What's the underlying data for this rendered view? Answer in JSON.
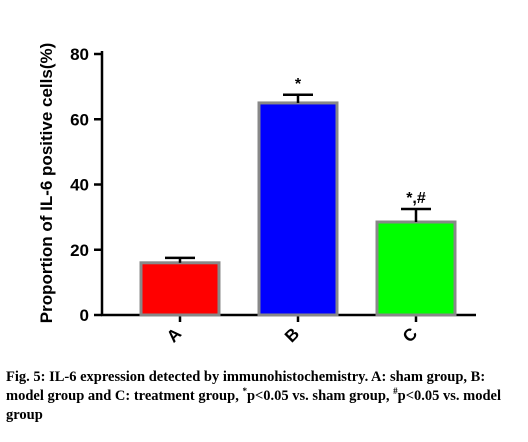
{
  "chart_data": {
    "type": "bar",
    "categories": [
      "A",
      "B",
      "C"
    ],
    "values": [
      16,
      65,
      28.5
    ],
    "errors": [
      1.5,
      2.5,
      4
    ],
    "significance": [
      "",
      "*",
      "*,#"
    ],
    "colors": [
      "#ff0000",
      "#0000ff",
      "#00ff00"
    ],
    "edge_color": "#888888",
    "ylabel": "Proportion of IL-6 positive cells(%)",
    "xlabel": "",
    "ylim": [
      0,
      80
    ],
    "yticks": [
      0,
      20,
      40,
      60,
      80
    ],
    "grid": false
  },
  "caption": {
    "fig_label": "Fig. 5:",
    "part1": " IL-6 expression detected by immunohistochemistry. A: sham group, B: model group and C: treatment group, ",
    "sup1": "*",
    "part2": "p<0.05 vs. sham group, ",
    "sup2": "#",
    "part3": "p<0.05 vs. model group"
  }
}
